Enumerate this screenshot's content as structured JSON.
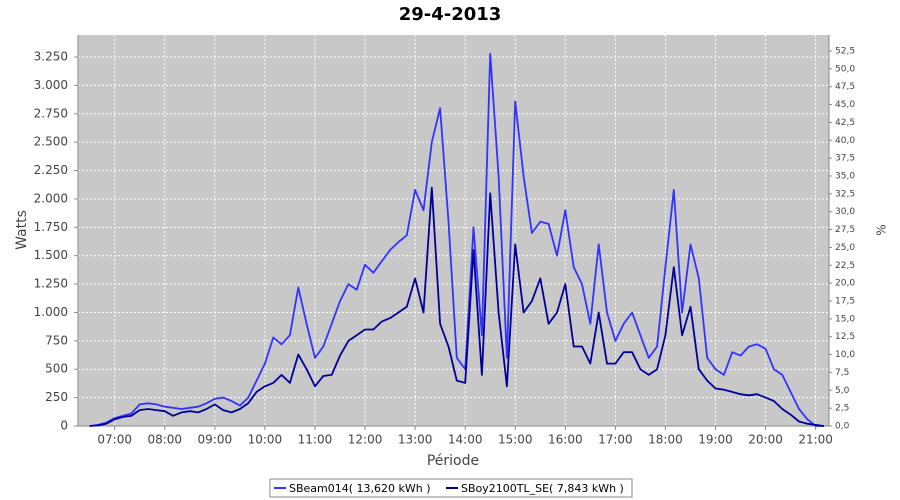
{
  "chart_data": {
    "type": "line",
    "title": "29-4-2013",
    "xlabel": "Période",
    "ylabel": "Watts",
    "y2label": "%",
    "x": [
      "06:30",
      "06:40",
      "06:50",
      "07:00",
      "07:10",
      "07:20",
      "07:30",
      "07:40",
      "07:50",
      "08:00",
      "08:10",
      "08:20",
      "08:30",
      "08:40",
      "08:50",
      "09:00",
      "09:10",
      "09:20",
      "09:30",
      "09:40",
      "09:50",
      "10:00",
      "10:10",
      "10:20",
      "10:30",
      "10:40",
      "10:50",
      "11:00",
      "11:10",
      "11:20",
      "11:30",
      "11:40",
      "11:50",
      "12:00",
      "12:10",
      "12:20",
      "12:30",
      "12:40",
      "12:50",
      "13:00",
      "13:10",
      "13:20",
      "13:30",
      "13:40",
      "13:50",
      "14:00",
      "14:10",
      "14:20",
      "14:30",
      "14:40",
      "14:50",
      "15:00",
      "15:10",
      "15:20",
      "15:30",
      "15:40",
      "15:50",
      "16:00",
      "16:10",
      "16:20",
      "16:30",
      "16:40",
      "16:50",
      "17:00",
      "17:10",
      "17:20",
      "17:30",
      "17:40",
      "17:50",
      "18:00",
      "18:10",
      "18:20",
      "18:30",
      "18:40",
      "18:50",
      "19:00",
      "19:10",
      "19:20",
      "19:30",
      "19:40",
      "19:50",
      "20:00",
      "20:10",
      "20:20",
      "20:30",
      "20:40",
      "20:50",
      "21:00",
      "21:10"
    ],
    "series": [
      {
        "name": "SBeam014( 13,620 kWh )",
        "color": "#3333ff",
        "values": [
          0,
          10,
          30,
          70,
          90,
          110,
          190,
          200,
          190,
          170,
          160,
          150,
          160,
          170,
          200,
          240,
          250,
          220,
          180,
          250,
          400,
          550,
          780,
          720,
          800,
          1220,
          900,
          600,
          700,
          900,
          1100,
          1250,
          1200,
          1420,
          1350,
          1450,
          1550,
          1620,
          1680,
          2080,
          1900,
          2500,
          2800,
          1800,
          600,
          500,
          1750,
          800,
          3280,
          2200,
          600,
          2860,
          2200,
          1700,
          1800,
          1780,
          1500,
          1900,
          1400,
          1250,
          900,
          1600,
          1000,
          750,
          900,
          1000,
          800,
          600,
          700,
          1400,
          2080,
          1000,
          1600,
          1300,
          600,
          500,
          450,
          650,
          620,
          700,
          720,
          680,
          500,
          450,
          300,
          150,
          60,
          0,
          0
        ]
      },
      {
        "name": "SBoy2100TL_SE( 7,843 kWh )",
        "color": "#000099",
        "values": [
          0,
          5,
          20,
          60,
          80,
          90,
          140,
          150,
          140,
          130,
          90,
          120,
          130,
          120,
          150,
          190,
          140,
          120,
          150,
          200,
          300,
          350,
          380,
          450,
          380,
          630,
          500,
          350,
          440,
          450,
          620,
          750,
          800,
          850,
          850,
          920,
          950,
          1000,
          1050,
          1300,
          1000,
          2100,
          900,
          700,
          400,
          380,
          1550,
          450,
          2050,
          1000,
          350,
          1600,
          1000,
          1100,
          1300,
          900,
          1000,
          1250,
          700,
          700,
          550,
          1000,
          550,
          550,
          650,
          650,
          500,
          450,
          500,
          800,
          1400,
          800,
          1050,
          500,
          400,
          330,
          320,
          300,
          280,
          270,
          280,
          250,
          220,
          150,
          100,
          40,
          20,
          10,
          0
        ]
      }
    ],
    "xlim": [
      "06:16",
      "21:16"
    ],
    "xticks": [
      "07:00",
      "08:00",
      "09:00",
      "10:00",
      "11:00",
      "12:00",
      "13:00",
      "14:00",
      "15:00",
      "16:00",
      "17:00",
      "18:00",
      "19:00",
      "20:00",
      "21:00"
    ],
    "ylim": [
      0,
      3444
    ],
    "yticks": [
      0,
      250,
      500,
      750,
      {
        "value": 1000,
        "label": "1.000"
      },
      {
        "value": 1250,
        "label": "1.250"
      },
      {
        "value": 1500,
        "label": "1.500"
      },
      {
        "value": 1750,
        "label": "1.750"
      },
      {
        "value": 2000,
        "label": "2.000"
      },
      {
        "value": 2250,
        "label": "2.250"
      },
      {
        "value": 2500,
        "label": "2.500"
      },
      {
        "value": 2750,
        "label": "2.750"
      },
      {
        "value": 3000,
        "label": "3.000"
      },
      {
        "value": 3250,
        "label": "3.250"
      }
    ],
    "y2lim": [
      0,
      54.74
    ],
    "y2ticks": [
      {
        "value": 0,
        "label": "0,0"
      },
      {
        "value": 2.5,
        "label": "2,5"
      },
      {
        "value": 5,
        "label": "5,0"
      },
      {
        "value": 7.5,
        "label": "7,5"
      },
      {
        "value": 10,
        "label": "10,0"
      },
      {
        "value": 12.5,
        "label": "12,5"
      },
      {
        "value": 15,
        "label": "15,0"
      },
      {
        "value": 17.5,
        "label": "17,5"
      },
      {
        "value": 20,
        "label": "20,0"
      },
      {
        "value": 22.5,
        "label": "22,5"
      },
      {
        "value": 25,
        "label": "25,0"
      },
      {
        "value": 27.5,
        "label": "27,5"
      },
      {
        "value": 30,
        "label": "30,0"
      },
      {
        "value": 32.5,
        "label": "32,5"
      },
      {
        "value": 35,
        "label": "35,0"
      },
      {
        "value": 37.5,
        "label": "37,5"
      },
      {
        "value": 40,
        "label": "40,0"
      },
      {
        "value": 42.5,
        "label": "42,5"
      },
      {
        "value": 45,
        "label": "45,0"
      },
      {
        "value": 47.5,
        "label": "47,5"
      },
      {
        "value": 50,
        "label": "50,0"
      },
      {
        "value": 52.5,
        "label": "52,5"
      }
    ],
    "grid": true
  }
}
